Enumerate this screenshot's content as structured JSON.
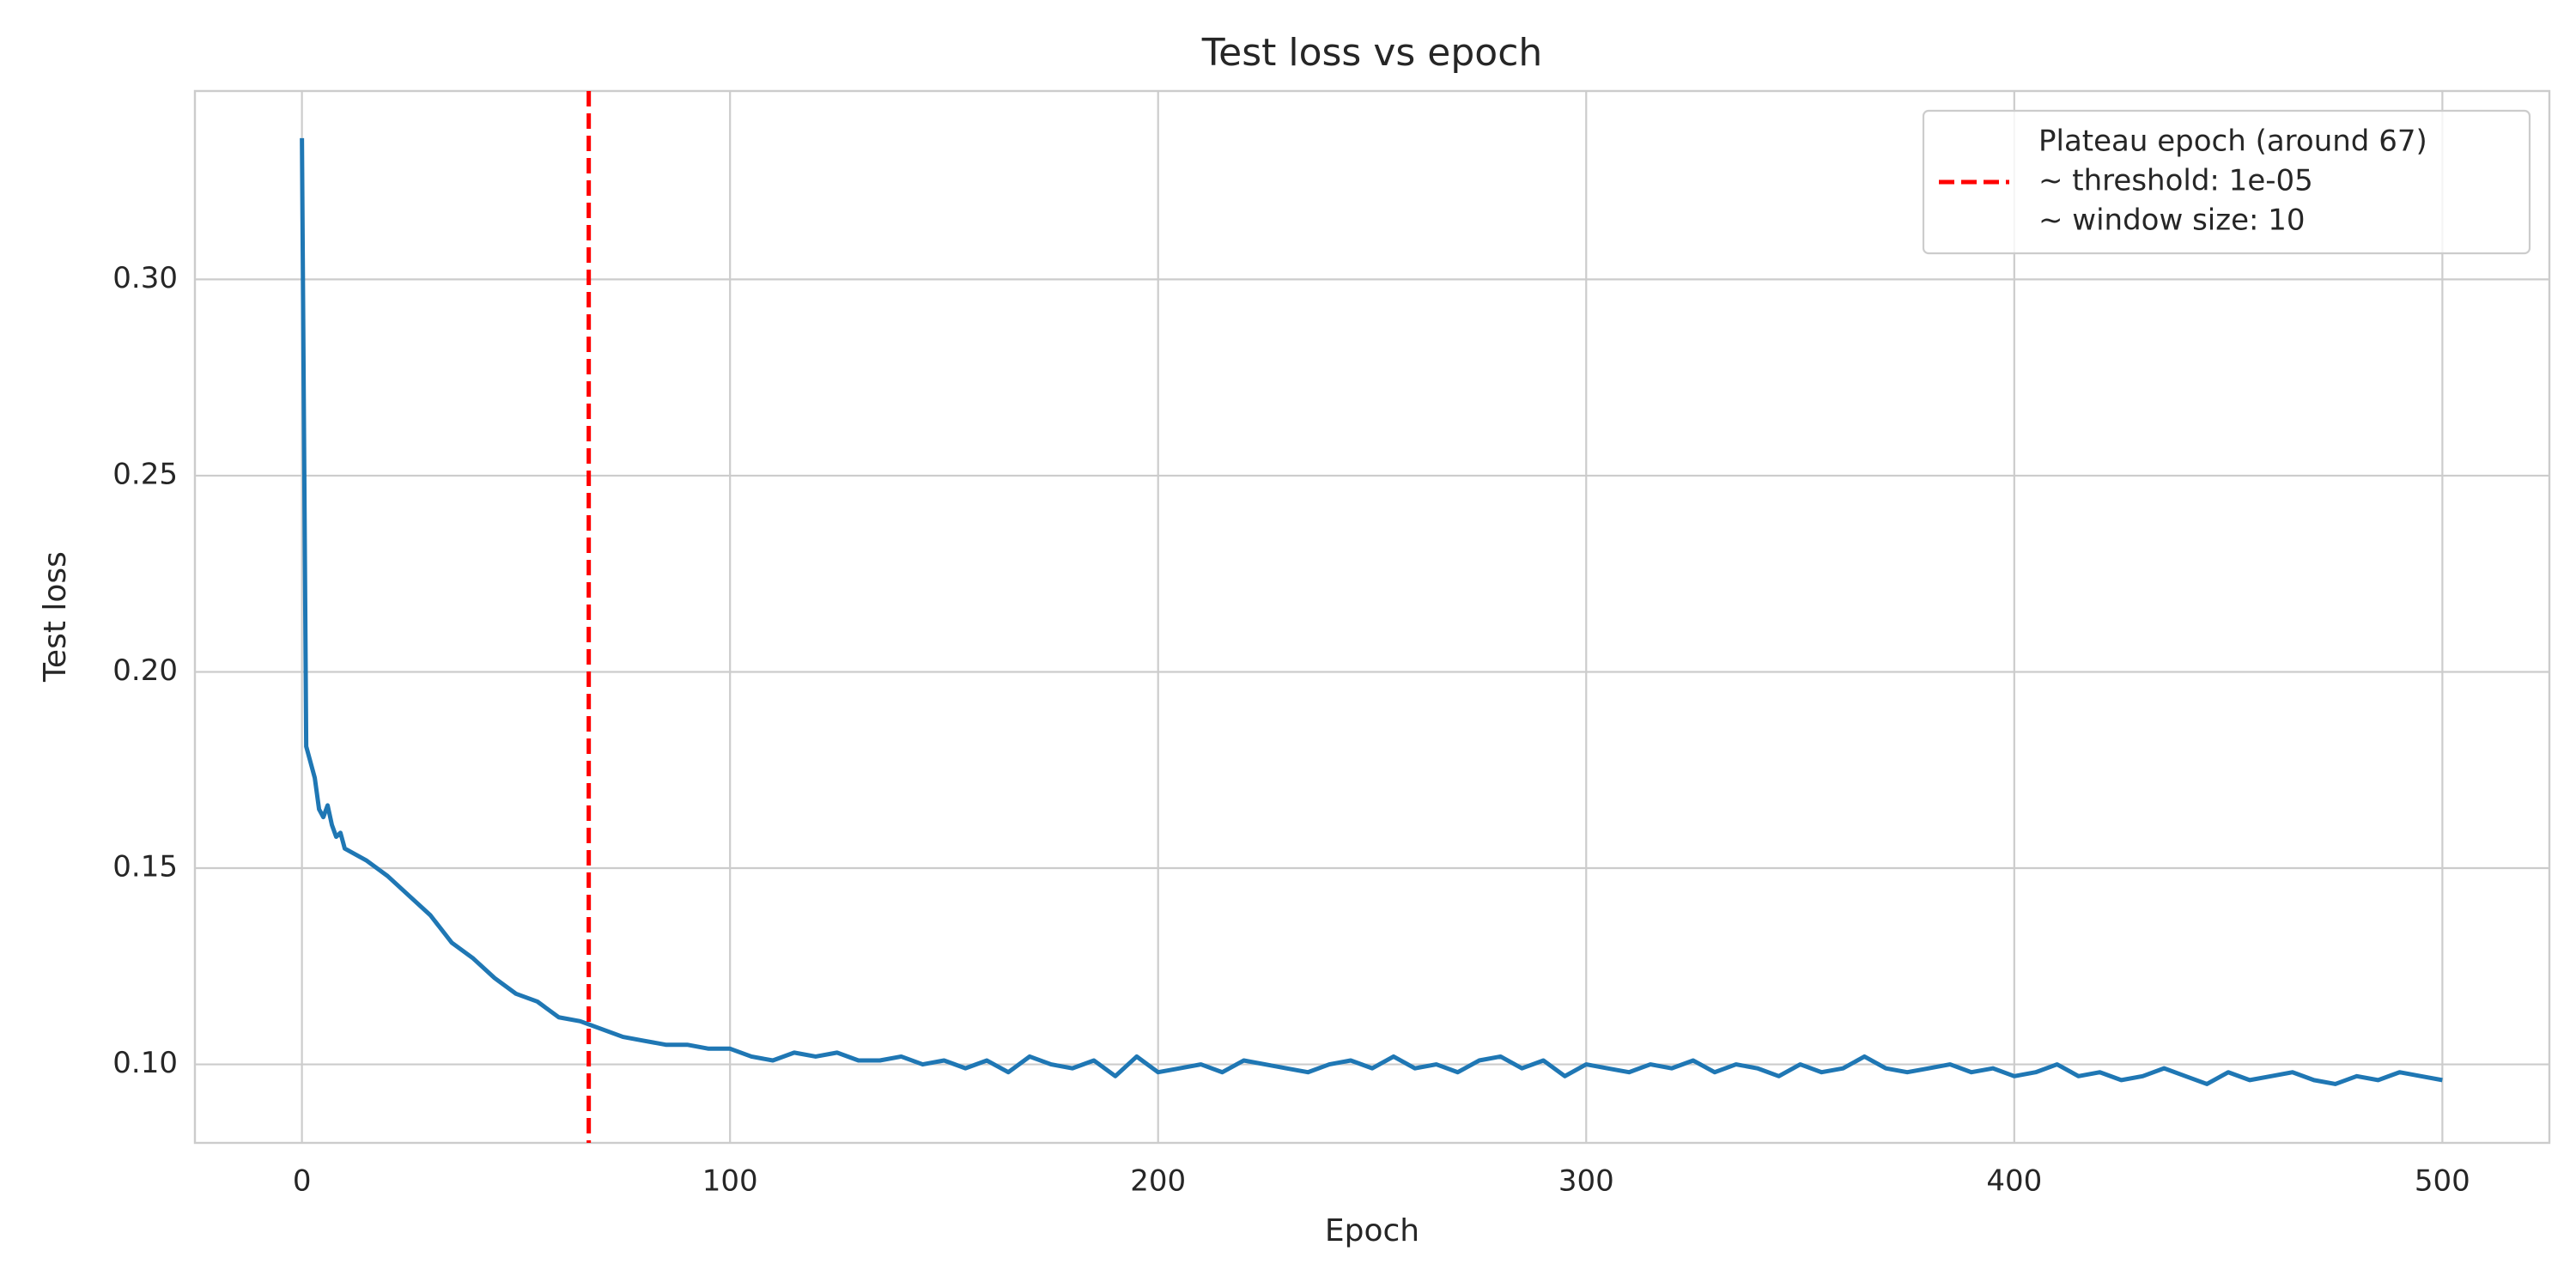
{
  "chart_data": {
    "type": "line",
    "title": "Test loss vs epoch",
    "xlabel": "Epoch",
    "ylabel": "Test loss",
    "x": [
      0,
      1,
      2,
      3,
      4,
      5,
      6,
      7,
      8,
      9,
      10,
      15,
      20,
      25,
      30,
      35,
      40,
      45,
      50,
      55,
      60,
      65,
      70,
      75,
      80,
      85,
      90,
      95,
      100,
      105,
      110,
      115,
      120,
      125,
      130,
      135,
      140,
      145,
      150,
      155,
      160,
      165,
      170,
      175,
      180,
      185,
      190,
      195,
      200,
      205,
      210,
      215,
      220,
      225,
      230,
      235,
      240,
      245,
      250,
      255,
      260,
      265,
      270,
      275,
      280,
      285,
      290,
      295,
      300,
      305,
      310,
      315,
      320,
      325,
      330,
      335,
      340,
      345,
      350,
      355,
      360,
      365,
      370,
      375,
      380,
      385,
      390,
      395,
      400,
      405,
      410,
      415,
      420,
      425,
      430,
      435,
      440,
      445,
      450,
      455,
      460,
      465,
      470,
      475,
      480,
      485,
      490,
      495,
      500
    ],
    "series": [
      {
        "name": "Test loss",
        "color": "#1f77b4",
        "values": [
          0.336,
          0.181,
          0.177,
          0.173,
          0.165,
          0.163,
          0.166,
          0.161,
          0.158,
          0.159,
          0.155,
          0.152,
          0.148,
          0.143,
          0.138,
          0.131,
          0.127,
          0.122,
          0.118,
          0.116,
          0.112,
          0.111,
          0.109,
          0.107,
          0.106,
          0.105,
          0.105,
          0.104,
          0.104,
          0.102,
          0.101,
          0.103,
          0.102,
          0.103,
          0.101,
          0.101,
          0.102,
          0.1,
          0.101,
          0.099,
          0.101,
          0.098,
          0.102,
          0.1,
          0.099,
          0.101,
          0.097,
          0.102,
          0.098,
          0.099,
          0.1,
          0.098,
          0.101,
          0.1,
          0.099,
          0.098,
          0.1,
          0.101,
          0.099,
          0.102,
          0.099,
          0.1,
          0.098,
          0.101,
          0.102,
          0.099,
          0.101,
          0.097,
          0.1,
          0.099,
          0.098,
          0.1,
          0.099,
          0.101,
          0.098,
          0.1,
          0.099,
          0.097,
          0.1,
          0.098,
          0.099,
          0.102,
          0.099,
          0.098,
          0.099,
          0.1,
          0.098,
          0.099,
          0.097,
          0.098,
          0.1,
          0.097,
          0.098,
          0.096,
          0.097,
          0.099,
          0.097,
          0.095,
          0.098,
          0.096,
          0.097,
          0.098,
          0.096,
          0.095,
          0.097,
          0.096,
          0.098,
          0.097,
          0.096
        ]
      }
    ],
    "vline": {
      "x": 67,
      "color": "#ff0000",
      "label_lines": [
        "Plateau epoch (around 67)",
        "~ threshold: 1e-05",
        "~ window size: 10"
      ]
    },
    "xlim": [
      -25,
      525
    ],
    "ylim": [
      0.08,
      0.348
    ],
    "xticks": [
      0,
      100,
      200,
      300,
      400,
      500
    ],
    "yticks": [
      {
        "value": 0.1,
        "label": "0.10"
      },
      0.15,
      {
        "value": 0.2,
        "label": "0.20"
      },
      0.25,
      {
        "value": 0.3,
        "label": "0.30"
      }
    ],
    "grid": true,
    "legend": "upper right"
  }
}
